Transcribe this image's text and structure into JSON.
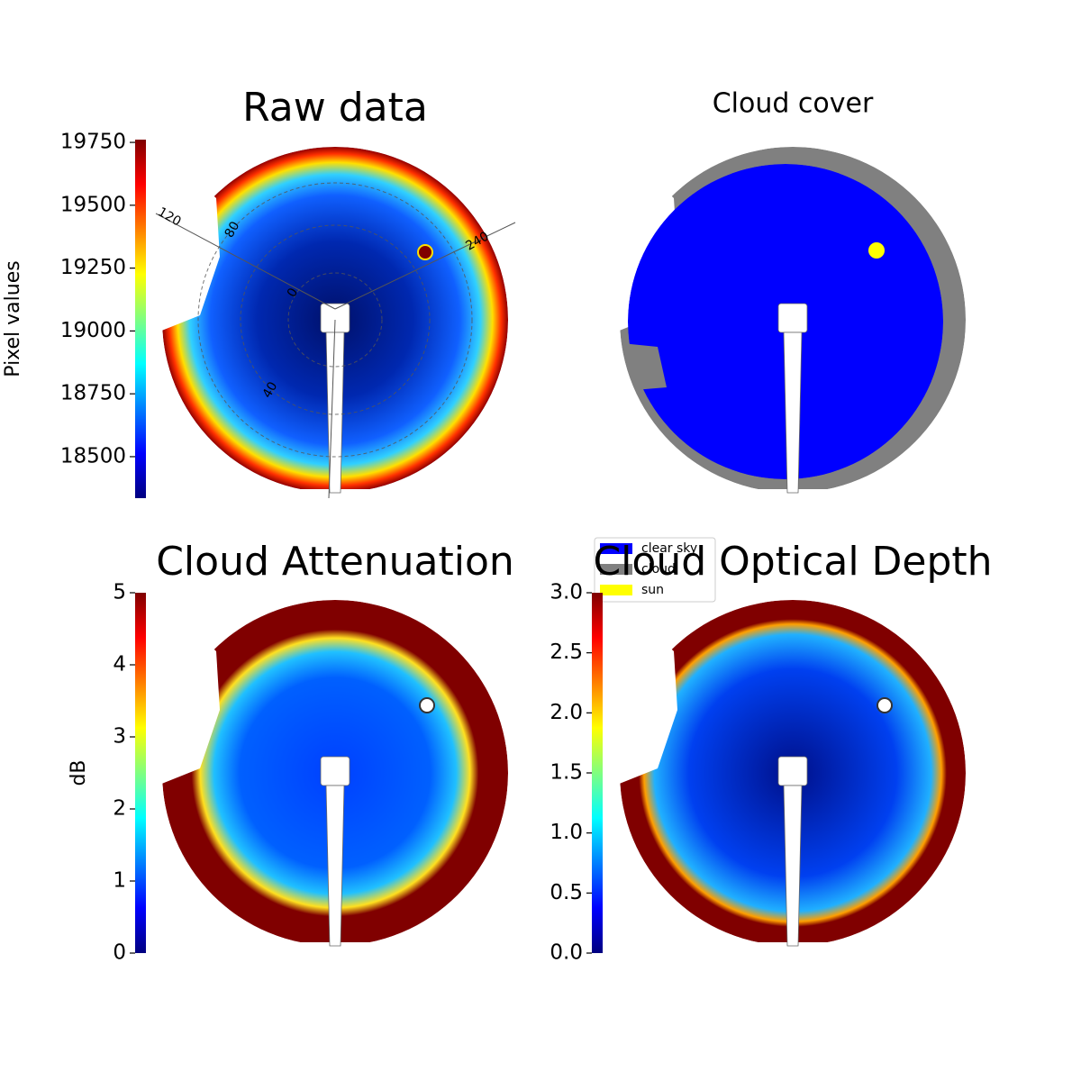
{
  "chart_data": [
    {
      "type": "image",
      "title": "Raw data",
      "colorbar_label": "Pixel values",
      "colormap": "jet",
      "ylim": [
        18335,
        19761
      ],
      "yticks": [
        18500,
        18750,
        19000,
        19250,
        19500,
        19750
      ],
      "annotations": [
        "120",
        "80",
        "240",
        "40",
        "0"
      ]
    },
    {
      "type": "classes",
      "title": "Cloud cover",
      "classes": [
        {
          "name": "clear sky",
          "color": "#0000ff"
        },
        {
          "name": "cloud",
          "color": "#808080"
        },
        {
          "name": "sun",
          "color": "#ffff00"
        }
      ]
    },
    {
      "type": "image",
      "title": "Cloud Attenuation",
      "colorbar_label": "dB",
      "colormap": "jet",
      "ylim": [
        0,
        5
      ],
      "yticks": [
        0,
        1,
        2,
        3,
        4,
        5
      ]
    },
    {
      "type": "image",
      "title": "Cloud Optical Depth",
      "colormap": "jet",
      "ylim": [
        0,
        3
      ],
      "yticks": [
        {
          "value": 0,
          "label": "0.0"
        },
        0.5,
        {
          "value": 1,
          "label": "1.0"
        },
        1.5,
        {
          "value": 2,
          "label": "2.0"
        },
        2.5,
        {
          "value": 3,
          "label": "3.0"
        }
      ]
    }
  ]
}
